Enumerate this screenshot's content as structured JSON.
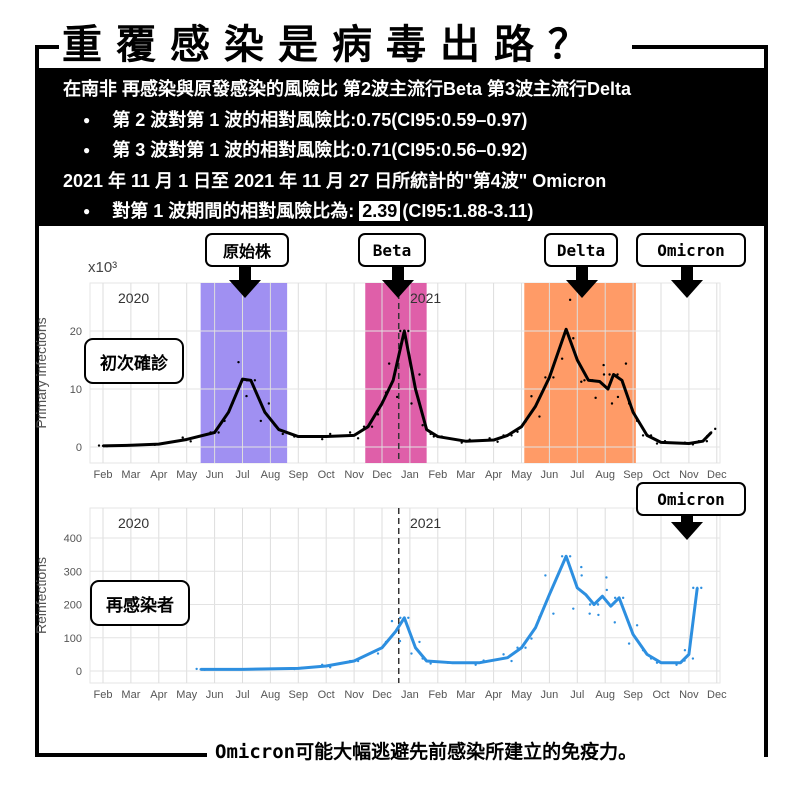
{
  "title": "重覆感染是病毒出路？",
  "header": {
    "line1": "在南非 再感染與原發感染的風險比 第2波主流行Beta 第3波主流行Delta",
    "bullet1": "第 2 波對第 1 波的相對風險比:0.75(CI95:0.59–0.97)",
    "bullet2": "第 3 波對第 1 波的相對風險比:0.71(CI95:0.56–0.92)",
    "line2": "2021 年 11 月 1 日至 2021 年 11 月 27 日所統計的\"第4波\" Omicron",
    "bullet3_prefix": "對第 1 波期間的相對風險比為:",
    "bullet3_value": "2.39",
    "bullet3_suffix": "(CI95:1.88-3.11)"
  },
  "tags": {
    "original": "原始株",
    "beta": "Beta",
    "delta": "Delta",
    "omicron1": "Omicron",
    "omicron2": "Omicron"
  },
  "labels": {
    "primary": "初次確診",
    "reinfect": "再感染者"
  },
  "caption": "Omicron可能大幅逃避先前感染所建立的免疫力。",
  "chart_data": [
    {
      "type": "line",
      "ylabel": "Primary infections",
      "yunit": "x10³",
      "yticks": [
        0,
        10,
        20
      ],
      "ylim": [
        -0.5,
        28
      ],
      "months": [
        "Feb",
        "Mar",
        "Apr",
        "May",
        "Jun",
        "Jul",
        "Aug",
        "Sep",
        "Oct",
        "Nov",
        "Dec",
        "Jan",
        "Feb",
        "Mar",
        "Apr",
        "May",
        "Jun",
        "Jul",
        "Aug",
        "Sep",
        "Oct",
        "Nov",
        "Dec"
      ],
      "year_labels": [
        "2020",
        "2021"
      ],
      "bands": [
        {
          "from": 3.5,
          "to": 6.6,
          "color": "#8f7cf0"
        },
        {
          "from": 9.4,
          "to": 11.6,
          "color": "#d9439a"
        },
        {
          "from": 15.1,
          "to": 19.1,
          "color": "#ff8a4c"
        }
      ],
      "dashed_x": 10.6,
      "series": [
        {
          "name": "Primary infections",
          "color": "#000000",
          "points": [
            [
              0,
              0.2
            ],
            [
              1,
              0.3
            ],
            [
              2,
              0.5
            ],
            [
              3,
              1.3
            ],
            [
              4,
              2.5
            ],
            [
              4.5,
              6
            ],
            [
              5,
              11.7
            ],
            [
              5.3,
              11.5
            ],
            [
              5.8,
              6
            ],
            [
              6.3,
              3
            ],
            [
              7,
              1.8
            ],
            [
              8,
              1.8
            ],
            [
              9,
              2
            ],
            [
              9.5,
              3.5
            ],
            [
              10,
              7.5
            ],
            [
              10.4,
              11.5
            ],
            [
              10.8,
              20
            ],
            [
              11.2,
              10
            ],
            [
              11.6,
              3
            ],
            [
              12,
              1.8
            ],
            [
              13,
              1
            ],
            [
              14,
              1.2
            ],
            [
              14.5,
              2
            ],
            [
              15,
              3.5
            ],
            [
              15.5,
              7
            ],
            [
              16,
              12
            ],
            [
              16.6,
              20.3
            ],
            [
              17,
              15
            ],
            [
              17.4,
              11.5
            ],
            [
              17.8,
              11.3
            ],
            [
              18.1,
              10
            ],
            [
              18.3,
              12.5
            ],
            [
              18.6,
              11.5
            ],
            [
              19,
              6
            ],
            [
              19.5,
              2
            ],
            [
              20,
              0.8
            ],
            [
              21,
              0.6
            ],
            [
              21.5,
              1
            ],
            [
              21.8,
              2.5
            ]
          ]
        }
      ]
    },
    {
      "type": "line",
      "ylabel": "Reinfections",
      "yticks": [
        0,
        100,
        200,
        300,
        400
      ],
      "ylim": [
        -25,
        490
      ],
      "months": [
        "Feb",
        "Mar",
        "Apr",
        "May",
        "Jun",
        "Jul",
        "Aug",
        "Sep",
        "Oct",
        "Nov",
        "Dec",
        "Jan",
        "Feb",
        "Mar",
        "Apr",
        "May",
        "Jun",
        "Jul",
        "Aug",
        "Sep",
        "Oct",
        "Nov",
        "Dec"
      ],
      "year_labels": [
        "2020",
        "2021"
      ],
      "dashed_x": 10.6,
      "series": [
        {
          "name": "Reinfections",
          "color": "#2d8fe0",
          "points": [
            [
              3.5,
              5
            ],
            [
              5,
              5
            ],
            [
              7,
              8
            ],
            [
              8,
              15
            ],
            [
              9,
              30
            ],
            [
              10,
              70
            ],
            [
              10.5,
              120
            ],
            [
              10.8,
              160
            ],
            [
              11.2,
              70
            ],
            [
              11.6,
              30
            ],
            [
              12.5,
              25
            ],
            [
              13.5,
              25
            ],
            [
              14.5,
              40
            ],
            [
              15,
              70
            ],
            [
              15.5,
              130
            ],
            [
              16,
              230
            ],
            [
              16.6,
              345
            ],
            [
              17,
              250
            ],
            [
              17.3,
              230
            ],
            [
              17.6,
              200
            ],
            [
              17.9,
              225
            ],
            [
              18.2,
              195
            ],
            [
              18.5,
              220
            ],
            [
              19,
              110
            ],
            [
              19.5,
              50
            ],
            [
              20,
              25
            ],
            [
              20.7,
              25
            ],
            [
              21,
              50
            ],
            [
              21.3,
              250
            ]
          ]
        }
      ]
    }
  ]
}
